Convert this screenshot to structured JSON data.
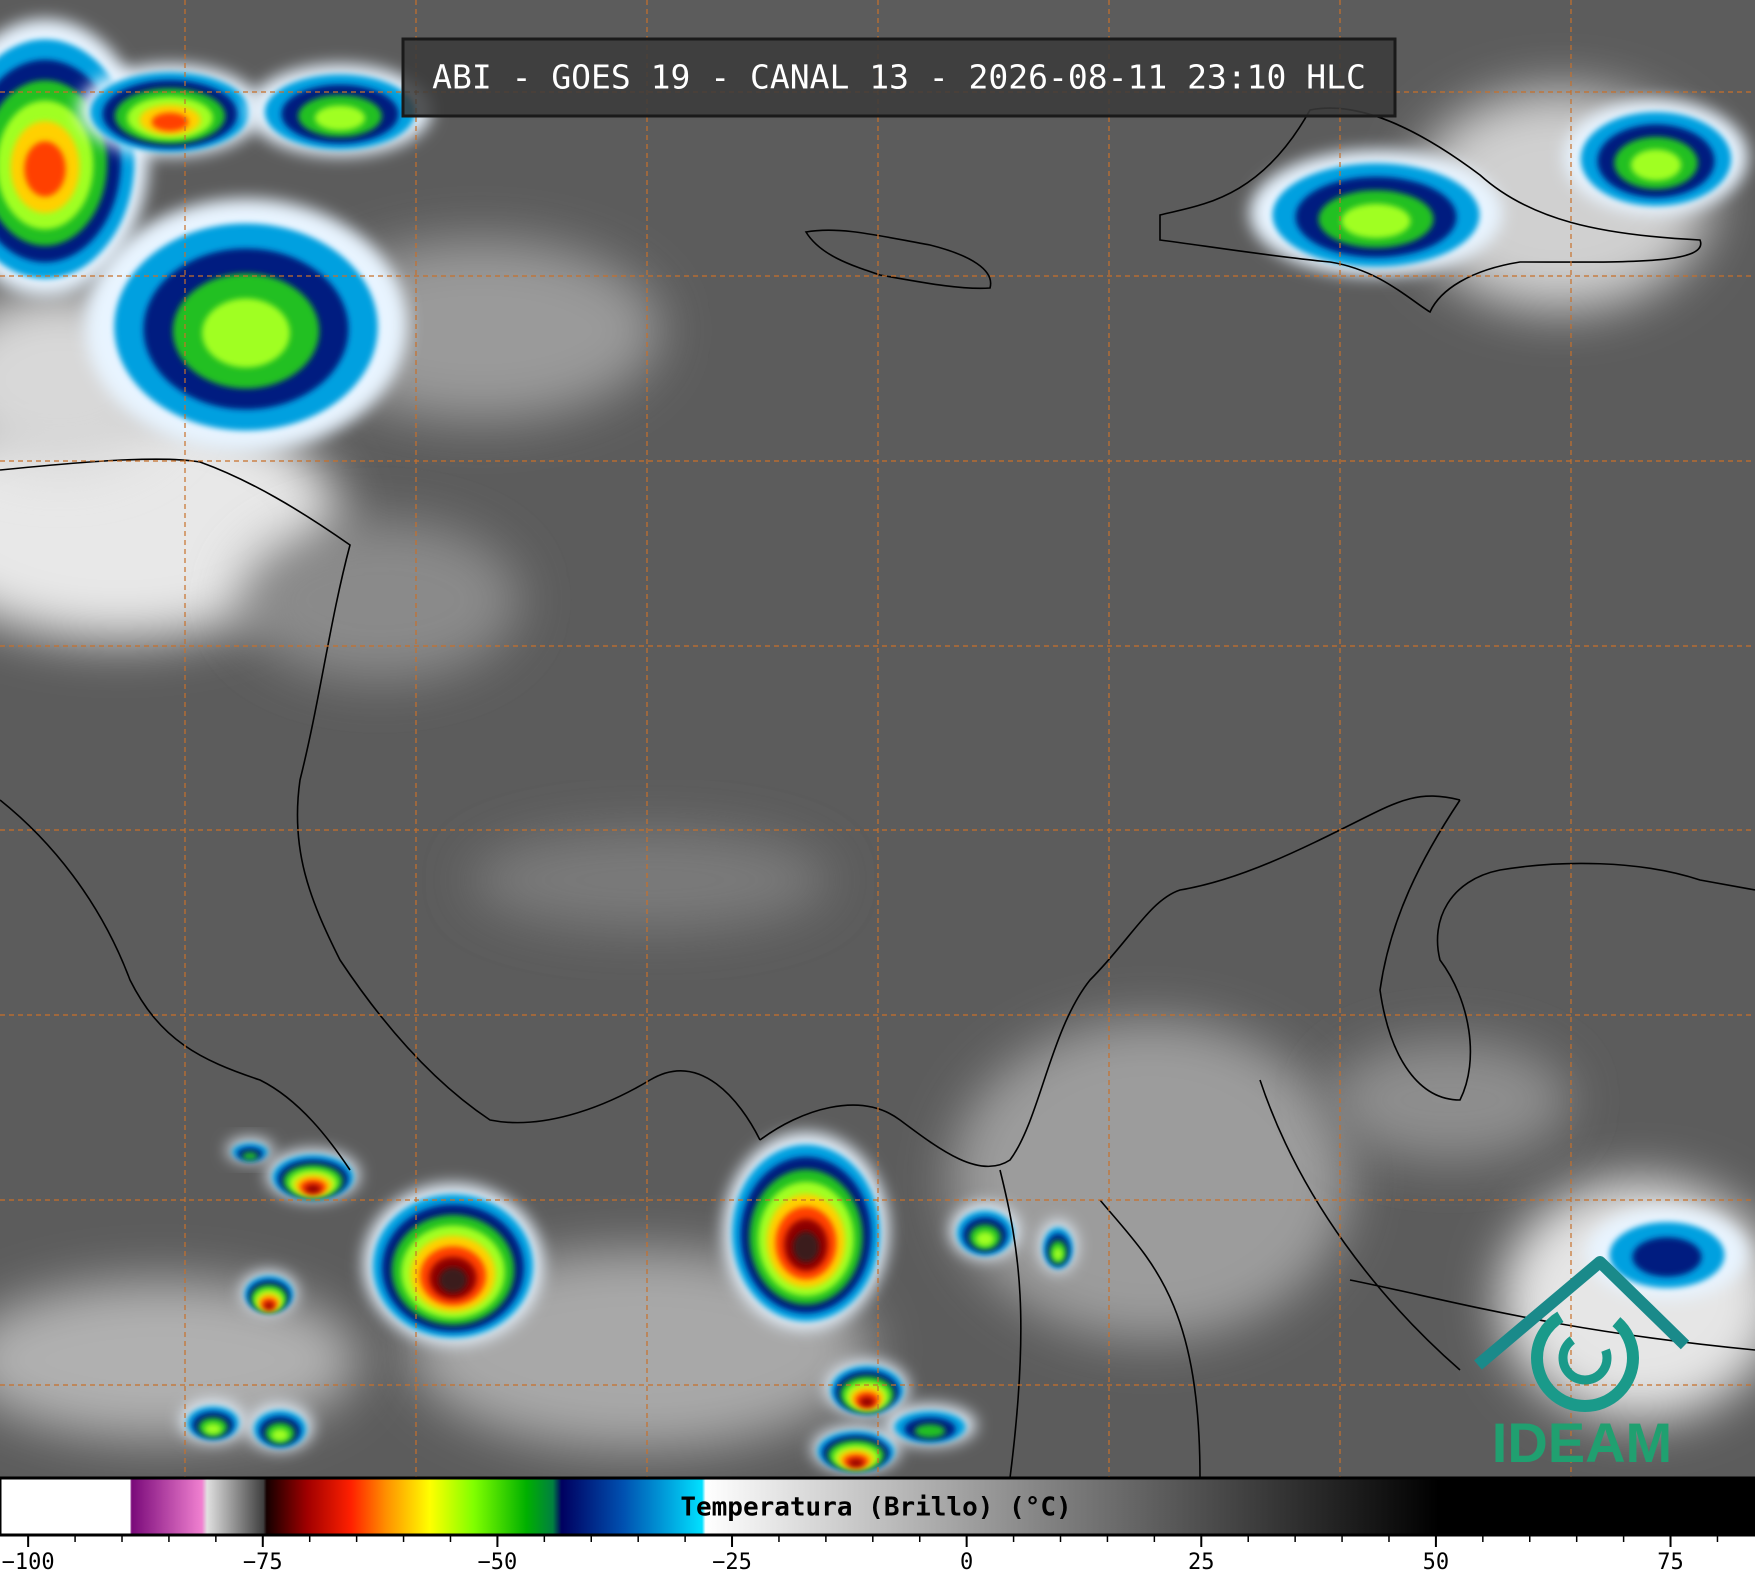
{
  "title": "ABI - GOES 19 - CANAL 13 - 2026-08-11 23:10 HLC",
  "colorbar": {
    "label": "Temperatura (Brillo) (°C)",
    "xlim": [
      -103,
      84
    ],
    "xticks": [
      {
        "value": -100,
        "label": "−100"
      },
      {
        "value": -75,
        "label": "−75"
      },
      {
        "value": -50,
        "label": "−50"
      },
      {
        "value": -25,
        "label": "−25"
      },
      0,
      25,
      50,
      75
    ],
    "minor_xticks": [
      -100,
      -95,
      -90,
      -85,
      -80,
      -75,
      -70,
      -65,
      -60,
      -55,
      -50,
      -45,
      -40,
      -35,
      -30,
      -25,
      -20,
      -15,
      -10,
      -5,
      0,
      5,
      10,
      15,
      20,
      25,
      30,
      35,
      40,
      45,
      50,
      55,
      60,
      65,
      70,
      75,
      80
    ]
  },
  "logo": "IDEAM"
}
